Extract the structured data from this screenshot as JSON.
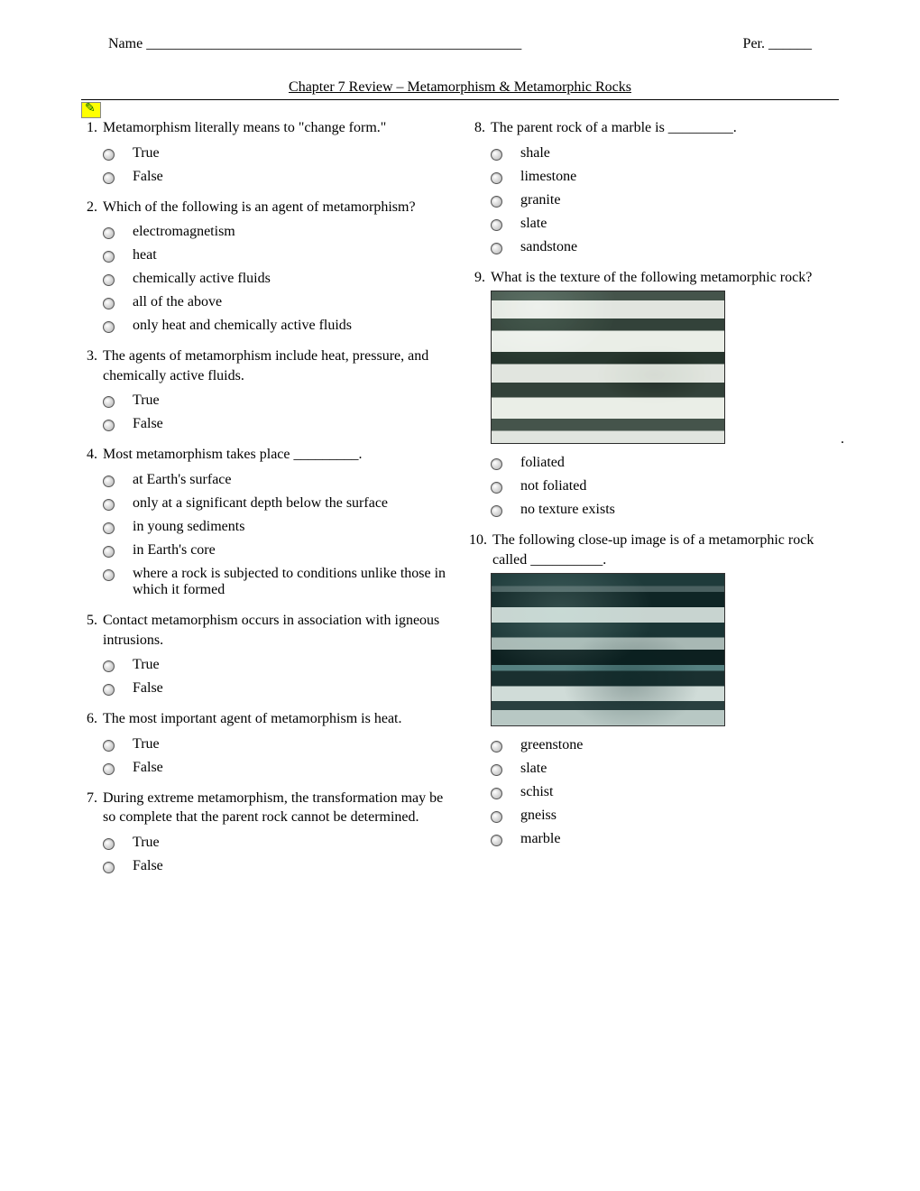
{
  "header": {
    "name_label": "Name ____________________________________________________",
    "per_label": "Per. ______"
  },
  "title": "Chapter 7 Review – Metamorphism & Metamorphic Rocks",
  "left": [
    {
      "n": "1.",
      "q": "Metamorphism literally means to \"change form.\"",
      "opts": [
        "True",
        "False"
      ]
    },
    {
      "n": "2.",
      "q": "Which of the following is an agent of metamorphism?",
      "opts": [
        "electromagnetism",
        "heat",
        "chemically active fluids",
        "all of the above",
        "only heat and chemically active fluids"
      ]
    },
    {
      "n": "3.",
      "q": "The agents of metamorphism include heat, pressure, and chemically active fluids.",
      "opts": [
        "True",
        "False"
      ]
    },
    {
      "n": "4.",
      "q": "Most metamorphism takes place _________.",
      "opts": [
        "at Earth's surface",
        "only at a significant depth below the surface",
        "in young sediments",
        "in Earth's core",
        "where a rock is subjected to conditions unlike those in which it formed"
      ]
    },
    {
      "n": "5.",
      "q": "Contact metamorphism occurs in association with igneous intrusions.",
      "opts": [
        "True",
        "False"
      ]
    },
    {
      "n": "6.",
      "q": "The most important agent of metamorphism is heat.",
      "opts": [
        "True",
        "False"
      ]
    },
    {
      "n": "7.",
      "q": "During extreme metamorphism, the transformation may be so complete that the parent rock cannot be determined.",
      "opts": [
        "True",
        "False"
      ]
    }
  ],
  "right": [
    {
      "n": "8.",
      "q": "The parent rock of a marble is _________.",
      "opts": [
        "shale",
        "limestone",
        "granite",
        "slate",
        "sandstone"
      ]
    },
    {
      "n": "9.",
      "q": "What is the texture of the following metamorphic rock?",
      "img": "foliated",
      "opts": [
        "foliated",
        "not foliated",
        "no texture exists"
      ]
    },
    {
      "n": "10.",
      "q": "The following close-up image is of a metamorphic rock called __________.",
      "img": "gneiss",
      "opts": [
        "greenstone",
        "slate",
        "schist",
        "gneiss",
        "marble"
      ]
    }
  ]
}
